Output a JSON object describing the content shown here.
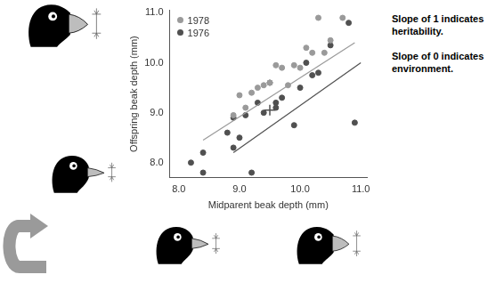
{
  "chart_data": {
    "type": "scatter",
    "x_label": "Midparent beak depth (mm)",
    "y_label": "Offspring beak depth (mm)",
    "xlim": [
      7.85,
      11.1
    ],
    "ylim": [
      7.7,
      11.05
    ],
    "xticks": [
      {
        "value": 8,
        "label": "8.0"
      },
      {
        "value": 9,
        "label": "9.0"
      },
      {
        "value": 10,
        "label": "10.0"
      },
      {
        "value": 11,
        "label": "11.0"
      }
    ],
    "yticks": [
      {
        "value": 8,
        "label": "8.0"
      },
      {
        "value": 9,
        "label": "9.0"
      },
      {
        "value": 10,
        "label": "10.0"
      },
      {
        "value": 11,
        "label": "11.0"
      }
    ],
    "grid": false,
    "legend": "upper left",
    "series": [
      {
        "name": "1978",
        "color": "#9a9a9a",
        "marker": "circle",
        "x": [
          8.9,
          9.0,
          9.1,
          9.2,
          9.3,
          9.4,
          9.5,
          9.6,
          9.7,
          9.8,
          9.9,
          10.0,
          10.1,
          10.2,
          10.3,
          10.4,
          10.5,
          10.7
        ],
        "values": [
          8.95,
          9.35,
          9.1,
          9.4,
          9.5,
          9.55,
          9.6,
          9.95,
          9.9,
          9.55,
          9.95,
          9.9,
          10.3,
          10.2,
          10.9,
          10.2,
          10.45,
          10.9
        ],
        "line_x": [
          8.4,
          10.9
        ],
        "line_y": [
          8.45,
          10.4
        ]
      },
      {
        "name": "1976",
        "color": "#505050",
        "marker": "circle",
        "x": [
          8.2,
          8.4,
          8.4,
          8.8,
          8.9,
          8.9,
          9.0,
          9.1,
          9.2,
          9.3,
          9.4,
          9.5,
          9.6,
          9.6,
          9.7,
          9.9,
          10.0,
          10.1,
          10.2,
          10.3,
          10.5,
          10.8,
          10.9
        ],
        "values": [
          8.0,
          7.8,
          8.2,
          8.6,
          8.3,
          8.9,
          8.5,
          8.95,
          7.8,
          9.2,
          9.0,
          9.6,
          9.1,
          9.2,
          9.3,
          8.75,
          9.5,
          10.0,
          9.75,
          9.8,
          10.35,
          10.8,
          8.8
        ],
        "line_x": [
          8.9,
          11.0
        ],
        "line_y": [
          8.2,
          10.0
        ],
        "mean": {
          "x": 9.5,
          "y": 9.05
        }
      }
    ]
  },
  "annotations": [
    "Slope of 1 indicates heritability.",
    "Slope of 0 indicates environment."
  ]
}
